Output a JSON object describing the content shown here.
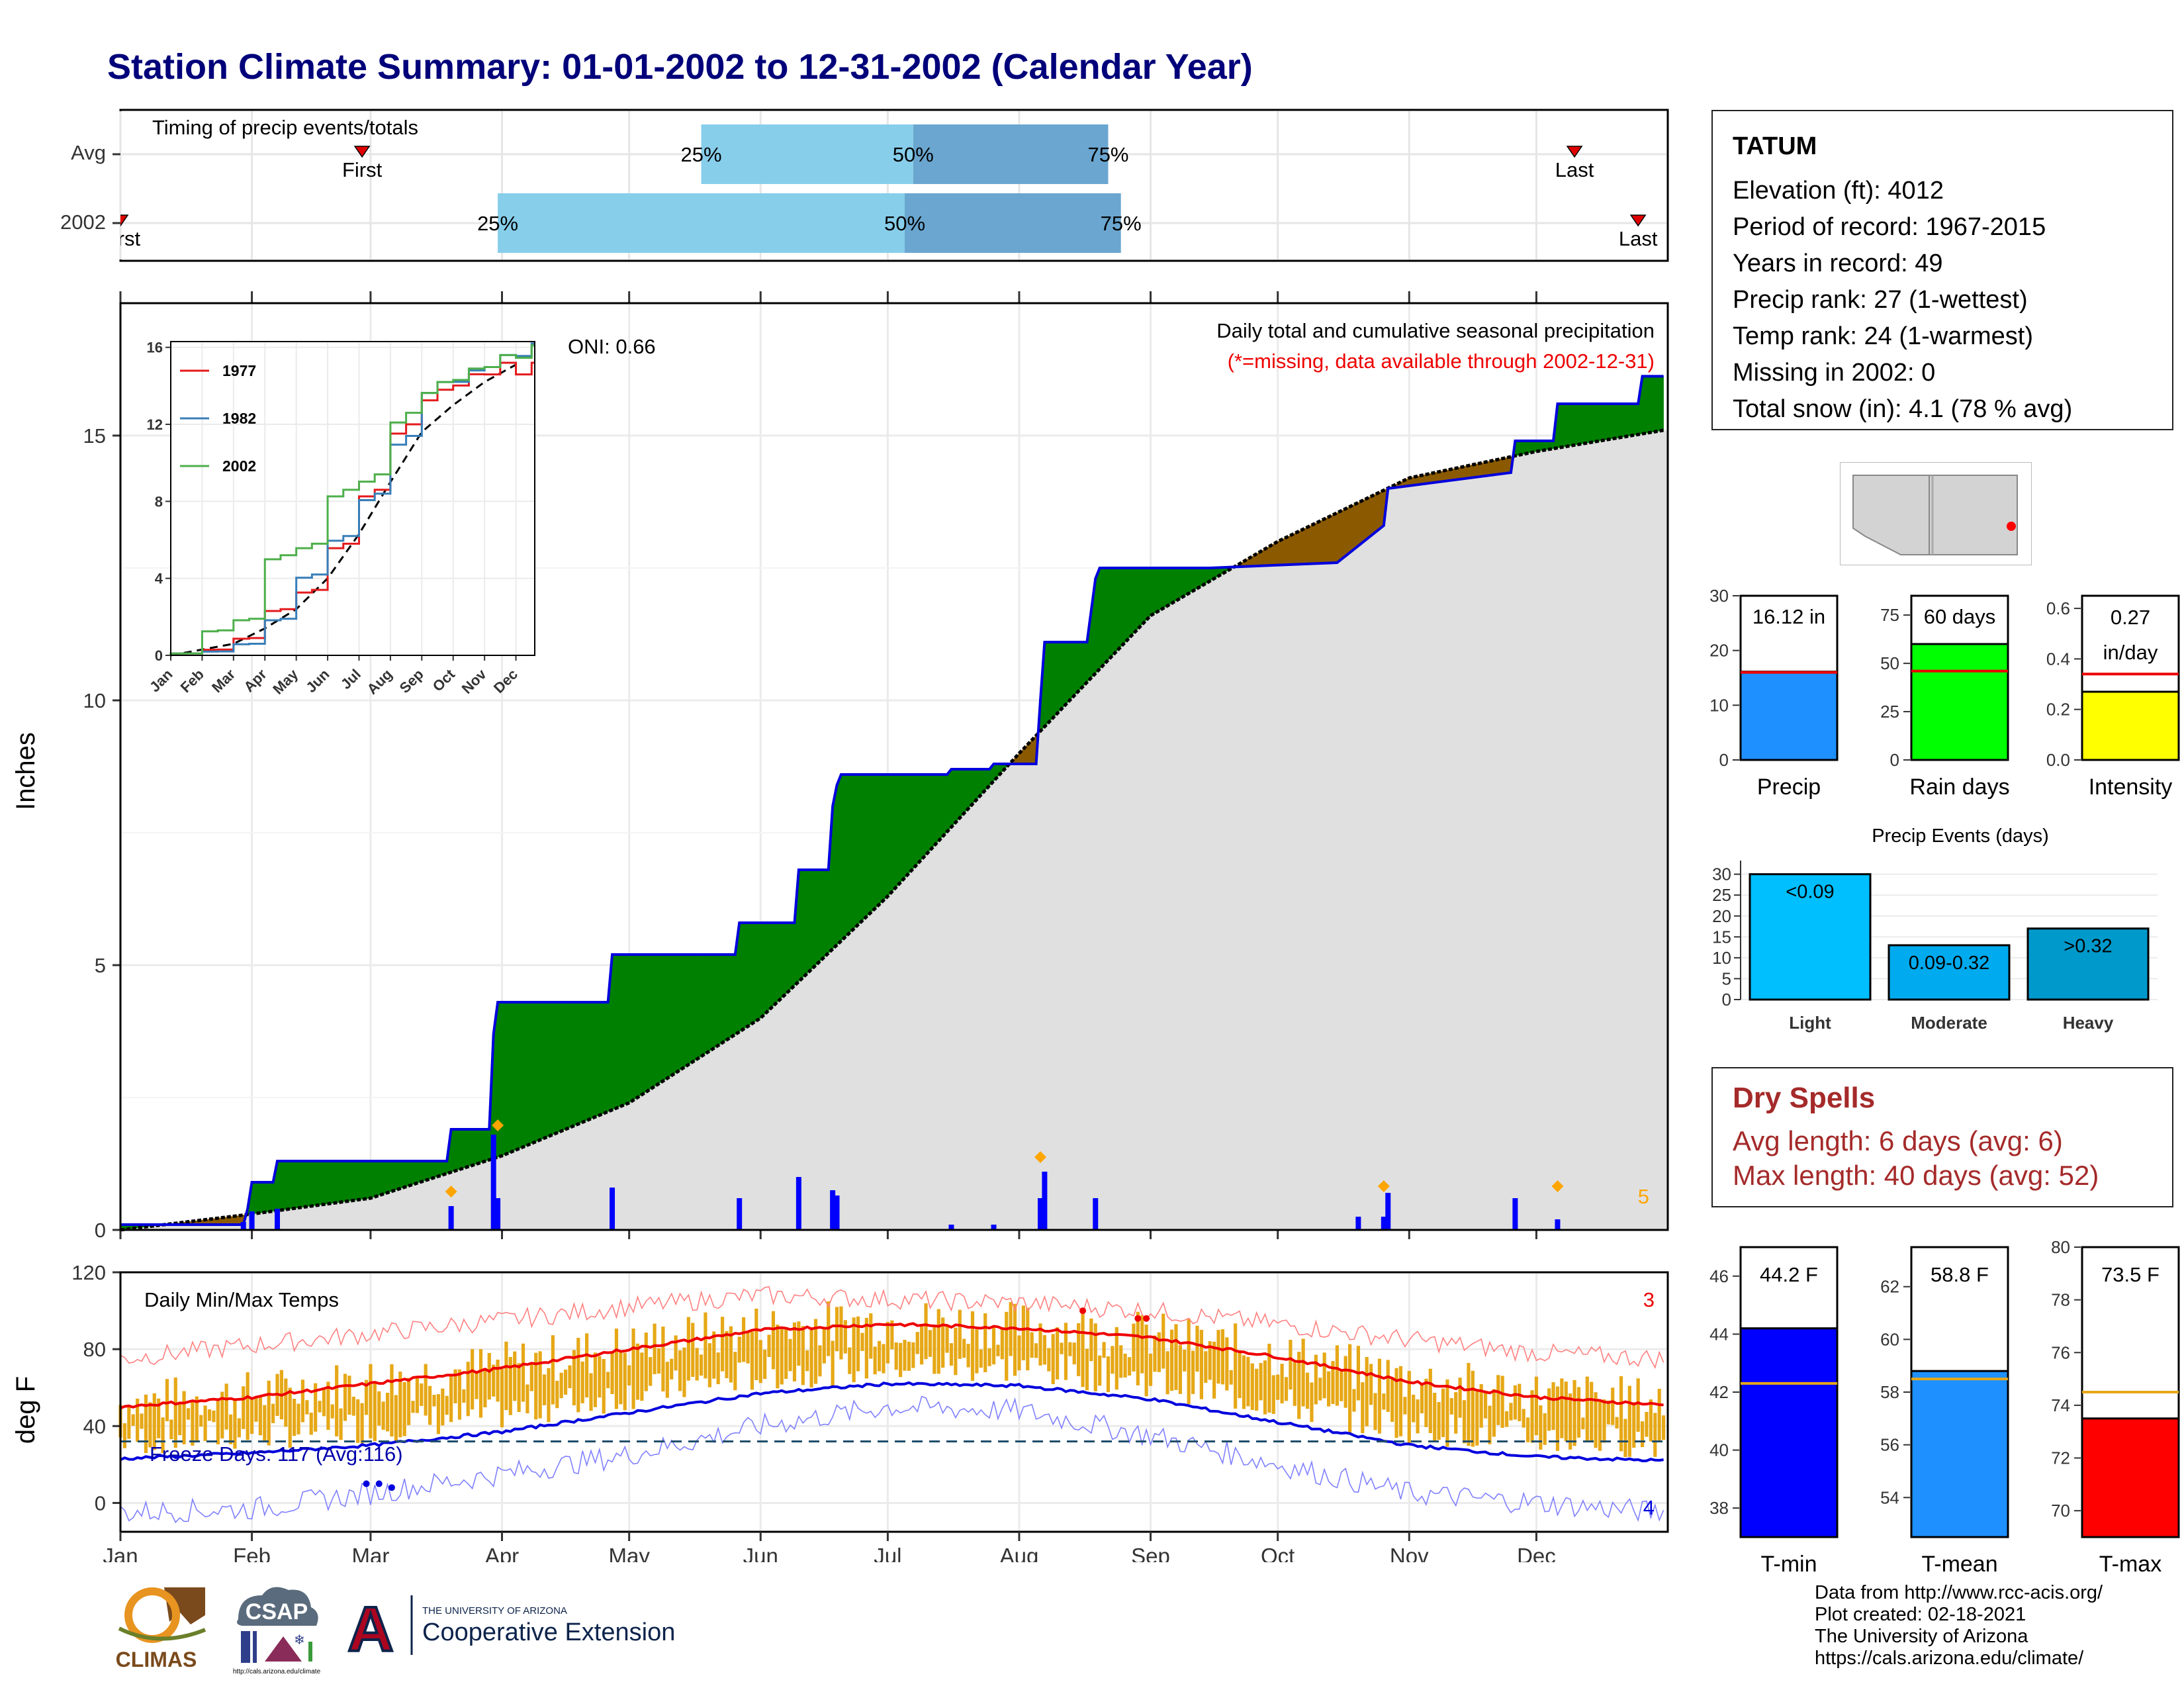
{
  "header": {
    "title": "Station Climate Summary: 01-01-2002 to 12-31-2002 (Calendar Year)"
  },
  "timing_panel": {
    "title": "Timing of precip events/totals",
    "rows": [
      {
        "label": "Avg",
        "q25": "2002-05-18",
        "q50": "2002-07-07",
        "q75": "2002-08-22",
        "first": "2002-02-27",
        "last": "2002-12-10",
        "q25_label": "25%",
        "q50_label": "50%",
        "q75_label": "75%",
        "first_label": "First",
        "last_label": "Last"
      },
      {
        "label": "2002",
        "q25": "2002-03-31",
        "q50": "2002-07-05",
        "q75": "2002-08-25",
        "first": "2002-01-01",
        "last": "2002-12-25",
        "q25_label": "25%",
        "q50_label": "50%",
        "q75_label": "75%",
        "first_label": "First",
        "last_label": "Last"
      }
    ],
    "colors": {
      "light": "#87ceeb",
      "dark": "#6aa6cf",
      "marker": "#e00000"
    }
  },
  "precip_panel": {
    "title": "Daily total and cumulative seasonal precipitation",
    "note": "(*=missing, data available through 2002-12-31)",
    "oni": "ONI: 0.66",
    "ylabel": "Inches",
    "y_ticks": [
      "0",
      "5",
      "10",
      "15"
    ],
    "extreme_count": "5",
    "colors": {
      "above": "#008000",
      "below": "#8b5a00",
      "cumulative": "#0000dd",
      "average": "#000000",
      "daily": "#0000ff",
      "fill": "#e0e0e0",
      "extreme": "#ffa500"
    }
  },
  "inset_chart": {
    "y_ticks": [
      "0",
      "4",
      "8",
      "12",
      "16"
    ],
    "months": [
      "Jan",
      "Feb",
      "Mar",
      "Apr",
      "May",
      "Jun",
      "Jul",
      "Aug",
      "Sep",
      "Oct",
      "Nov",
      "Dec"
    ],
    "series": [
      {
        "name": "1977",
        "color": "#e41a1c"
      },
      {
        "name": "1982",
        "color": "#377eb8"
      },
      {
        "name": "2002",
        "color": "#4daf4a"
      }
    ]
  },
  "temp_panel": {
    "title": "Daily Min/Max Temps",
    "ylabel": "deg F",
    "y_ticks": [
      "0",
      "40",
      "80",
      "120"
    ],
    "freeze_label": "Freeze Days: 117 (Avg:116)",
    "freeze_line": 32,
    "max_record_count": "3",
    "min_record_count": "4",
    "months": [
      "Jan",
      "Feb",
      "Mar",
      "Apr",
      "May",
      "Jun",
      "Jul",
      "Aug",
      "Sep",
      "Oct",
      "Nov",
      "Dec"
    ],
    "colors": {
      "range": "#e6a817",
      "avg_max": "#ee0000",
      "avg_min": "#0000dd",
      "rec_max": "#ff8080",
      "rec_min": "#8080ff"
    }
  },
  "station": {
    "name": "TATUM",
    "elevation": "Elevation (ft): 4012",
    "period": "Period of record: 1967-2015",
    "years": "Years in record: 49",
    "precip_rank": "Precip rank: 27 (1-wettest)",
    "temp_rank": "Temp rank: 24 (1-warmest)",
    "missing": "Missing in 2002: 0",
    "snow": "Total snow (in): 4.1 (78 % avg)"
  },
  "stat_bars": [
    {
      "key": "precip",
      "label": "Precip",
      "value": 16.12,
      "avg": 16.0,
      "max": 30,
      "ticks": [
        "0",
        "10",
        "20",
        "30"
      ],
      "tick_values": [
        0,
        10,
        20,
        30
      ],
      "value_label": "16.12 in",
      "color": "#1e90ff"
    },
    {
      "key": "raindays",
      "label": "Rain days",
      "value": 60,
      "avg": 46,
      "max": 85,
      "ticks": [
        "0",
        "25",
        "50",
        "75"
      ],
      "tick_values": [
        0,
        25,
        50,
        75
      ],
      "value_label": "60 days",
      "color": "#00ff00"
    },
    {
      "key": "intensity",
      "label": "Intensity",
      "value": 0.27,
      "avg": 0.34,
      "max": 0.65,
      "ticks": [
        "0.0",
        "0.2",
        "0.4",
        "0.6"
      ],
      "tick_values": [
        0,
        0.2,
        0.4,
        0.6
      ],
      "value_label": "0.27",
      "value_label2": "in/day",
      "color": "#ffff00"
    }
  ],
  "events_chart": {
    "title": "Precip Events (days)",
    "y_ticks": [
      "0",
      "5",
      "10",
      "15",
      "20",
      "25",
      "30"
    ],
    "bars": [
      {
        "label": "Light",
        "value": 30,
        "bar_label": "<0.09",
        "color": "#00bfff"
      },
      {
        "label": "Moderate",
        "value": 13,
        "bar_label": "0.09-0.32",
        "color": "#00aaee"
      },
      {
        "label": "Heavy",
        "value": 17,
        "bar_label": ">0.32",
        "color": "#0099cc"
      }
    ]
  },
  "map": {
    "marker_color": "#ff0000"
  },
  "dry_spells": {
    "title": "Dry Spells",
    "avg": "Avg length: 6 days (avg: 6)",
    "max": "Max length: 40 days (avg: 52)"
  },
  "temp_bars": [
    {
      "key": "tmin",
      "label": "T-min",
      "value": 44.2,
      "avg": 42.3,
      "min": 37,
      "max": 47,
      "ticks": [
        "38",
        "40",
        "42",
        "44",
        "46"
      ],
      "tick_values": [
        38,
        40,
        42,
        44,
        46
      ],
      "value_label": "44.2 F",
      "color": "#0000ff"
    },
    {
      "key": "tmean",
      "label": "T-mean",
      "value": 58.8,
      "avg": 58.5,
      "min": 52.5,
      "max": 63.5,
      "ticks": [
        "54",
        "56",
        "58",
        "60",
        "62"
      ],
      "tick_values": [
        54,
        56,
        58,
        60,
        62
      ],
      "value_label": "58.8 F",
      "color": "#1e90ff"
    },
    {
      "key": "tmax",
      "label": "T-max",
      "value": 73.5,
      "avg": 74.5,
      "min": 69,
      "max": 80,
      "ticks": [
        "70",
        "72",
        "74",
        "76",
        "78",
        "80"
      ],
      "tick_values": [
        70,
        72,
        74,
        76,
        78,
        80
      ],
      "value_label": "73.5 F",
      "color": "#ff0000"
    }
  ],
  "footer": {
    "line1": "Data from http://www.rcc-acis.org/",
    "line2": "Plot created: 02-18-2021",
    "line3": "The University of Arizona",
    "line4": "https://cals.arizona.edu/climate/",
    "logo_climas": "CLIMAS",
    "logo_csap": "CSAP",
    "logo_csap_url": "http://cals.arizona.edu/climate",
    "logo_ua_letter": "A",
    "logo_ua_line1": "THE UNIVERSITY OF ARIZONA",
    "logo_ua_line2": "Cooperative Extension"
  },
  "chart_data": [
    {
      "type": "bar",
      "name": "Timing of precip events/totals",
      "categories": [
        "Avg",
        "2002"
      ],
      "series": [
        {
          "name": "25%",
          "values": [
            "2002-05-18",
            "2002-03-31"
          ]
        },
        {
          "name": "50%",
          "values": [
            "2002-07-07",
            "2002-07-05"
          ]
        },
        {
          "name": "75%",
          "values": [
            "2002-08-22",
            "2002-08-25"
          ]
        },
        {
          "name": "First",
          "values": [
            "2002-02-27",
            "2002-01-01"
          ]
        },
        {
          "name": "Last",
          "values": [
            "2002-12-10",
            "2002-12-25"
          ]
        }
      ]
    },
    {
      "type": "area",
      "title": "Daily total and cumulative seasonal precipitation",
      "ylabel": "Inches",
      "ylim": [
        0,
        17.5
      ],
      "xlim": [
        "2002-01-01",
        "2002-12-31"
      ],
      "series": [
        {
          "name": "cumulative",
          "points": [
            [
              "2002-01-01",
              0.1
            ],
            [
              "2002-01-30",
              0.1
            ],
            [
              "2002-01-31",
              0.4
            ],
            [
              "2002-02-01",
              0.9
            ],
            [
              "2002-02-06",
              0.9
            ],
            [
              "2002-02-07",
              1.3
            ],
            [
              "2002-03-19",
              1.3
            ],
            [
              "2002-03-20",
              1.9
            ],
            [
              "2002-03-29",
              1.9
            ],
            [
              "2002-03-30",
              3.7
            ],
            [
              "2002-03-31",
              4.3
            ],
            [
              "2002-04-26",
              4.3
            ],
            [
              "2002-04-27",
              5.2
            ],
            [
              "2002-05-26",
              5.2
            ],
            [
              "2002-05-27",
              5.8
            ],
            [
              "2002-06-09",
              5.8
            ],
            [
              "2002-06-10",
              6.8
            ],
            [
              "2002-06-17",
              6.8
            ],
            [
              "2002-06-18",
              8.0
            ],
            [
              "2002-06-19",
              8.4
            ],
            [
              "2002-06-20",
              8.6
            ],
            [
              "2002-07-15",
              8.6
            ],
            [
              "2002-07-16",
              8.7
            ],
            [
              "2002-07-25",
              8.7
            ],
            [
              "2002-07-26",
              8.8
            ],
            [
              "2002-08-05",
              8.8
            ],
            [
              "2002-08-06",
              10.0
            ],
            [
              "2002-08-07",
              11.1
            ],
            [
              "2002-08-17",
              11.1
            ],
            [
              "2002-08-18",
              11.7
            ],
            [
              "2002-08-19",
              12.3
            ],
            [
              "2002-08-20",
              12.5
            ],
            [
              "2002-09-05",
              12.5
            ],
            [
              "2002-09-15",
              12.5
            ],
            [
              "2002-10-15",
              12.6
            ],
            [
              "2002-10-26",
              13.3
            ],
            [
              "2002-10-27",
              14.0
            ],
            [
              "2002-11-25",
              14.3
            ],
            [
              "2002-11-26",
              14.9
            ],
            [
              "2002-12-05",
              14.9
            ],
            [
              "2002-12-06",
              15.6
            ],
            [
              "2002-12-25",
              15.6
            ],
            [
              "2002-12-26",
              16.12
            ],
            [
              "2002-12-31",
              16.12
            ]
          ]
        },
        {
          "name": "average",
          "points": [
            [
              "2002-01-01",
              0.0
            ],
            [
              "2002-02-01",
              0.3
            ],
            [
              "2002-03-01",
              0.6
            ],
            [
              "2002-04-01",
              1.4
            ],
            [
              "2002-05-01",
              2.4
            ],
            [
              "2002-06-01",
              4.0
            ],
            [
              "2002-07-01",
              6.3
            ],
            [
              "2002-08-01",
              9.0
            ],
            [
              "2002-09-01",
              11.6
            ],
            [
              "2002-10-01",
              13.0
            ],
            [
              "2002-11-01",
              14.2
            ],
            [
              "2002-12-01",
              14.7
            ],
            [
              "2002-12-31",
              15.1
            ]
          ]
        }
      ],
      "daily": [
        [
          "2002-01-30",
          0.15
        ],
        [
          "2002-02-01",
          0.35
        ],
        [
          "2002-02-07",
          0.4
        ],
        [
          "2002-03-20",
          0.45
        ],
        [
          "2002-03-30",
          1.8
        ],
        [
          "2002-03-31",
          0.6
        ],
        [
          "2002-04-27",
          0.8
        ],
        [
          "2002-05-27",
          0.6
        ],
        [
          "2002-06-10",
          1.0
        ],
        [
          "2002-06-18",
          0.75
        ],
        [
          "2002-06-19",
          0.65
        ],
        [
          "2002-07-16",
          0.1
        ],
        [
          "2002-07-26",
          0.1
        ],
        [
          "2002-08-06",
          0.6
        ],
        [
          "2002-08-07",
          1.1
        ],
        [
          "2002-08-19",
          0.6
        ],
        [
          "2002-10-20",
          0.25
        ],
        [
          "2002-10-26",
          0.25
        ],
        [
          "2002-10-27",
          0.7
        ],
        [
          "2002-11-26",
          0.6
        ],
        [
          "2002-12-06",
          0.2
        ]
      ],
      "extremes": [
        [
          "2002-03-20",
          0.55
        ],
        [
          "2002-03-31",
          1.8
        ],
        [
          "2002-08-06",
          1.2
        ],
        [
          "2002-10-26",
          0.65
        ],
        [
          "2002-12-06",
          0.65
        ]
      ]
    },
    {
      "type": "line",
      "title": "Daily Min/Max Temps",
      "ylabel": "deg F",
      "ylim": [
        -15,
        120
      ],
      "series": [
        {
          "name": "avg_max",
          "points": [
            [
              "2002-01-01",
              50
            ],
            [
              "2002-02-01",
              55
            ],
            [
              "2002-03-01",
              62
            ],
            [
              "2002-04-01",
              70
            ],
            [
              "2002-05-01",
              80
            ],
            [
              "2002-06-01",
              90
            ],
            [
              "2002-07-01",
              93
            ],
            [
              "2002-08-01",
              91
            ],
            [
              "2002-09-01",
              86
            ],
            [
              "2002-10-01",
              76
            ],
            [
              "2002-11-01",
              63
            ],
            [
              "2002-12-01",
              55
            ],
            [
              "2002-12-31",
              51
            ]
          ]
        },
        {
          "name": "avg_min",
          "points": [
            [
              "2002-01-01",
              23
            ],
            [
              "2002-02-01",
              26
            ],
            [
              "2002-03-01",
              30
            ],
            [
              "2002-04-01",
              37
            ],
            [
              "2002-05-01",
              47
            ],
            [
              "2002-06-01",
              57
            ],
            [
              "2002-07-01",
              62
            ],
            [
              "2002-08-01",
              61
            ],
            [
              "2002-09-01",
              54
            ],
            [
              "2002-10-01",
              42
            ],
            [
              "2002-11-01",
              30
            ],
            [
              "2002-12-01",
              24
            ],
            [
              "2002-12-31",
              22
            ]
          ]
        },
        {
          "name": "record_max",
          "points": [
            [
              "2002-01-01",
              75
            ],
            [
              "2002-02-01",
              82
            ],
            [
              "2002-03-01",
              88
            ],
            [
              "2002-04-01",
              95
            ],
            [
              "2002-05-01",
              102
            ],
            [
              "2002-06-01",
              108
            ],
            [
              "2002-07-01",
              106
            ],
            [
              "2002-08-01",
              104
            ],
            [
              "2002-09-01",
              100
            ],
            [
              "2002-10-01",
              93
            ],
            [
              "2002-11-01",
              85
            ],
            [
              "2002-12-01",
              78
            ],
            [
              "2002-12-31",
              75
            ]
          ]
        },
        {
          "name": "record_min",
          "points": [
            [
              "2002-01-01",
              -5
            ],
            [
              "2002-02-01",
              -3
            ],
            [
              "2002-03-01",
              5
            ],
            [
              "2002-04-01",
              15
            ],
            [
              "2002-05-01",
              25
            ],
            [
              "2002-06-01",
              40
            ],
            [
              "2002-07-01",
              50
            ],
            [
              "2002-08-01",
              48
            ],
            [
              "2002-09-01",
              35
            ],
            [
              "2002-10-01",
              20
            ],
            [
              "2002-11-01",
              5
            ],
            [
              "2002-12-01",
              0
            ],
            [
              "2002-12-31",
              -5
            ]
          ]
        }
      ]
    },
    {
      "type": "bar",
      "title": "Precip Events (days)",
      "categories": [
        "Light",
        "Moderate",
        "Heavy"
      ],
      "values": [
        30,
        13,
        17
      ],
      "ylim": [
        0,
        32
      ]
    },
    {
      "type": "bar",
      "categories": [
        "Precip",
        "Rain days",
        "Intensity"
      ],
      "values": [
        16.12,
        60,
        0.27
      ],
      "averages": [
        16.0,
        46,
        0.34
      ]
    },
    {
      "type": "bar",
      "categories": [
        "T-min",
        "T-mean",
        "T-max"
      ],
      "values": [
        44.2,
        58.8,
        73.5
      ],
      "averages": [
        42.3,
        58.5,
        74.5
      ]
    },
    {
      "type": "line",
      "name": "inset cumulative precipitation",
      "xlim": [
        "Jan",
        "Dec"
      ],
      "ylim": [
        0,
        16
      ],
      "series": [
        {
          "name": "1977",
          "values": [
            0.1,
            0.3,
            0.9,
            2.4,
            3.4,
            5.8,
            8.6,
            12.0,
            13.8,
            14.6,
            15.2,
            15.2
          ]
        },
        {
          "name": "1982",
          "values": [
            0.1,
            0.2,
            0.6,
            1.9,
            4.2,
            6.2,
            8.4,
            11.4,
            14.2,
            14.8,
            15.6,
            16.2
          ]
        },
        {
          "name": "2002",
          "values": [
            0.1,
            1.3,
            1.9,
            5.2,
            5.8,
            8.6,
            9.4,
            12.6,
            14.2,
            14.9,
            15.6,
            16.1
          ]
        }
      ]
    }
  ]
}
